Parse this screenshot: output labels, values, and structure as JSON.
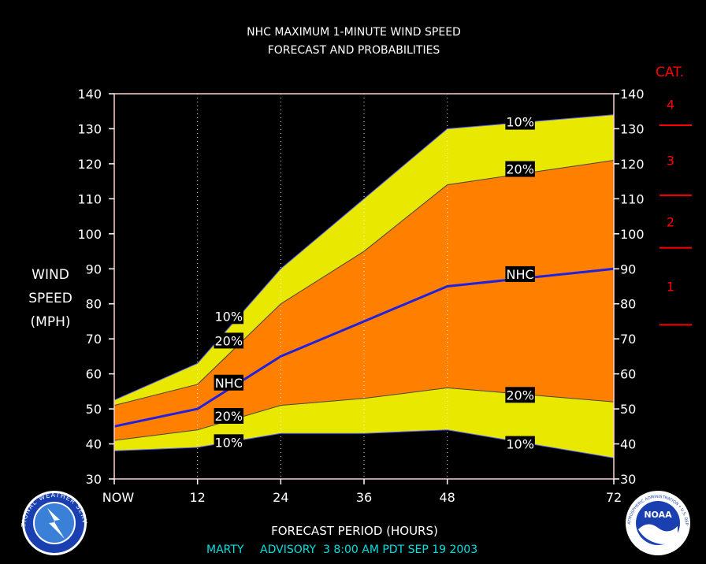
{
  "chart_data": {
    "type": "area",
    "title": "NHC MAXIMUM 1-MINUTE WIND SPEED",
    "subtitle": "FORECAST AND PROBABILITIES",
    "xlabel": "FORECAST PERIOD (HOURS)",
    "ylabel_lines": [
      "WIND",
      "SPEED",
      "(MPH)"
    ],
    "x_ticks": [
      {
        "x": 0,
        "label": "NOW"
      },
      {
        "x": 12,
        "label": "12"
      },
      {
        "x": 24,
        "label": "24"
      },
      {
        "x": 36,
        "label": "36"
      },
      {
        "x": 48,
        "label": "48"
      },
      {
        "x": 72,
        "label": "72"
      }
    ],
    "xlim": [
      0,
      72
    ],
    "ylim": [
      30,
      140
    ],
    "y_ticks": [
      30,
      40,
      50,
      60,
      70,
      80,
      90,
      100,
      110,
      120,
      130,
      140
    ],
    "vertical_grid_x": [
      12,
      24,
      36,
      48
    ],
    "x": [
      0,
      12,
      24,
      36,
      48,
      72
    ],
    "series": [
      {
        "name": "10%",
        "role": "upper",
        "values": [
          52.5,
          63,
          90,
          110,
          130,
          134
        ]
      },
      {
        "name": "20%",
        "role": "upper",
        "values": [
          51,
          57,
          80,
          95,
          114,
          121
        ]
      },
      {
        "name": "NHC",
        "role": "forecast",
        "values": [
          45,
          50,
          65,
          75,
          85,
          90
        ]
      },
      {
        "name": "20%",
        "role": "lower",
        "values": [
          41,
          44,
          51,
          53,
          56,
          52
        ]
      },
      {
        "name": "10%",
        "role": "lower",
        "values": [
          38,
          39,
          43,
          43,
          44,
          36
        ]
      }
    ],
    "band_labels": [
      {
        "text": "10%",
        "x": 16.5,
        "y": 76.5
      },
      {
        "text": "20%",
        "x": 16.5,
        "y": 69.5
      },
      {
        "text": "NHC",
        "x": 16.5,
        "y": 57.5
      },
      {
        "text": "20%",
        "x": 16.5,
        "y": 48
      },
      {
        "text": "10%",
        "x": 16.5,
        "y": 40.5
      },
      {
        "text": "10%",
        "x": 58.5,
        "y": 132
      },
      {
        "text": "20%",
        "x": 58.5,
        "y": 118.5
      },
      {
        "text": "NHC",
        "x": 58.5,
        "y": 88.5
      },
      {
        "text": "20%",
        "x": 58.5,
        "y": 54
      },
      {
        "text": "10%",
        "x": 58.5,
        "y": 40
      }
    ],
    "category_scale": {
      "title": "CAT.",
      "thresholds": [
        74,
        96,
        111,
        131
      ],
      "labels": [
        {
          "text": "1",
          "y": 85
        },
        {
          "text": "2",
          "y": 103.5
        },
        {
          "text": "3",
          "y": 121
        },
        {
          "text": "4",
          "y": 137
        }
      ]
    },
    "colors": {
      "background": "#000000",
      "outer_band": "#E8E800",
      "inner_band": "#FF8000",
      "forecast_line": "#2020E0",
      "category": "#FF0000",
      "text": "#FFFFFF",
      "footer": "#00E0E0",
      "plot_border": "#FFD0D0"
    }
  },
  "footer": {
    "storm": "MARTY",
    "advisory": "ADVISORY  3 8:00 AM PDT SEP 19 2003"
  },
  "logos": {
    "left": "NATIONAL WEATHER SERVICE",
    "right_center": "NOAA",
    "right": "NATIONAL OCEANIC AND ATMOSPHERIC ADMINISTRATION • U.S. DEPARTMENT OF COMMERCE"
  }
}
